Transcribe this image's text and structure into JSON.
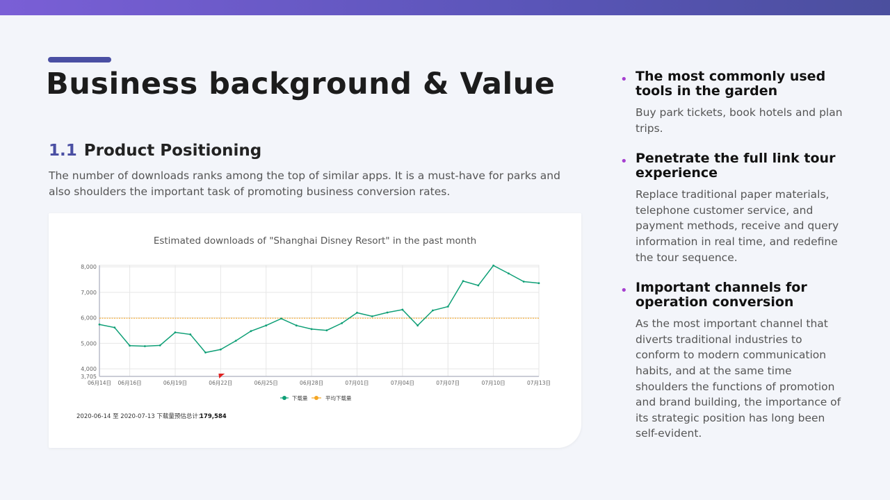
{
  "slide": {
    "title": "Business background & Value",
    "section_number": "1.1",
    "section_title": "Product Positioning",
    "description": "The number of downloads ranks among the top of similar apps. It is a must-have for parks and also shoulders the important task of promoting business conversion rates."
  },
  "points": [
    {
      "title": "The most commonly used tools in the garden",
      "text": "Buy park tickets, book hotels and plan trips."
    },
    {
      "title": "Penetrate the full link tour experience",
      "text": "Replace traditional paper materials, telephone customer service, and payment methods, receive and query information in real time, and redefine the tour sequence."
    },
    {
      "title": "Important channels for operation conversion",
      "text": "As the most important channel that diverts traditional industries to conform to modern communication habits, and at the same time shoulders the functions of promotion and brand building, the importance of its strategic position has long been self-evident."
    }
  ],
  "colors": {
    "accent": "#4a4fa3",
    "bullet": "#a63fd0",
    "series": "#0e9f76",
    "average": "#f5a623"
  },
  "chart_data": {
    "type": "line",
    "title": "Estimated downloads of \"Shanghai Disney Resort\" in the past month",
    "x": [
      "06月14日",
      "06月15日",
      "06月16日",
      "06月17日",
      "06月18日",
      "06月19日",
      "06月20日",
      "06月21日",
      "06月22日",
      "06月23日",
      "06月24日",
      "06月25日",
      "06月26日",
      "06月27日",
      "06月28日",
      "06月29日",
      "06月30日",
      "07月01日",
      "07月02日",
      "07月03日",
      "07月04日",
      "07月05日",
      "07月06日",
      "07月07日",
      "07月08日",
      "07月09日",
      "07月10日",
      "07月11日",
      "07月12日",
      "07月13日"
    ],
    "x_tick_labels": [
      "06月14日",
      "06月16日",
      "06月19日",
      "06月22日",
      "06月25日",
      "06月28日",
      "07月01日",
      "07月04日",
      "07月07日",
      "07月10日",
      "07月13日"
    ],
    "y_tick_labels": [
      "3,705",
      "4,000",
      "5,000",
      "6,000",
      "7,000",
      "8,000"
    ],
    "y_ticks": [
      3705,
      4000,
      5000,
      6000,
      7000,
      8000
    ],
    "ylim": [
      3705,
      8060
    ],
    "grid": true,
    "legend_position": "bottom",
    "series": [
      {
        "name": "下载量",
        "color": "#0e9f76",
        "values": [
          5740,
          5620,
          4910,
          4890,
          4920,
          5430,
          5350,
          4640,
          4760,
          5100,
          5480,
          5700,
          5970,
          5700,
          5560,
          5510,
          5790,
          6200,
          6060,
          6210,
          6320,
          5700,
          6290,
          6440,
          7440,
          7270,
          8050,
          7740,
          7420,
          7360
        ]
      },
      {
        "name": "平均下载量",
        "color": "#f5a623",
        "style": "dotted",
        "value": 5986
      }
    ],
    "marker_flag_at": "06月22日",
    "footer_label": "2020-06-14 至 2020-07-13 下载量预估总计：",
    "footer_total": "179,584"
  }
}
